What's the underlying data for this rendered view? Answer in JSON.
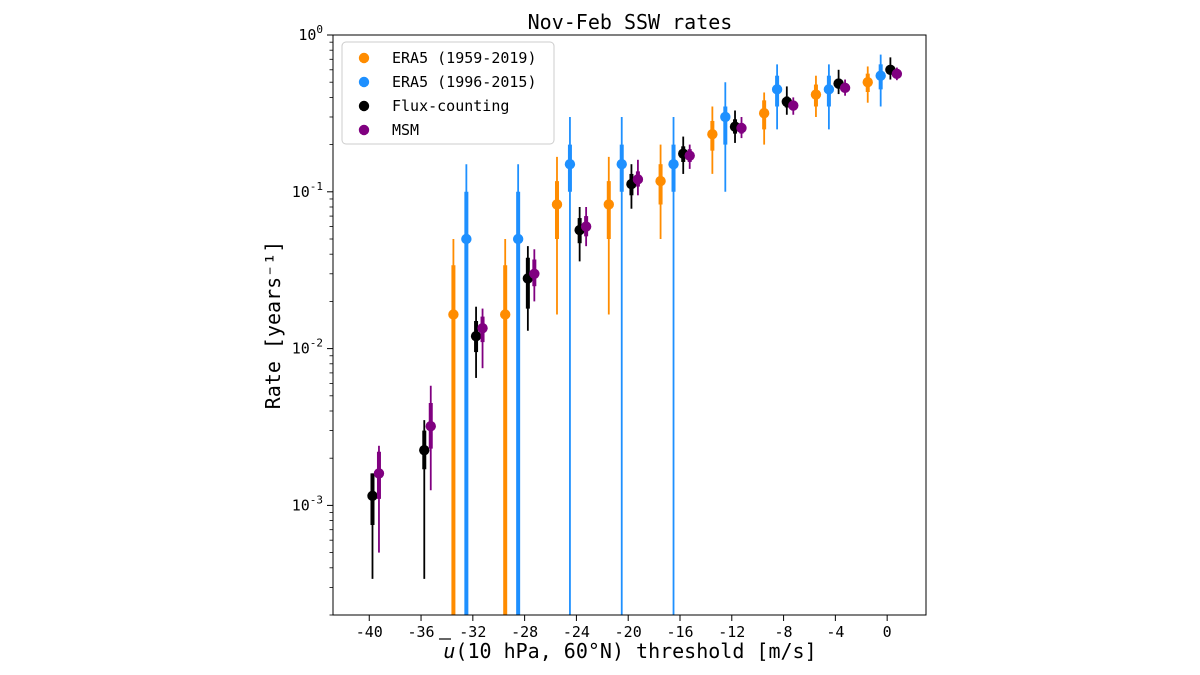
{
  "chart_data": {
    "type": "scatter",
    "title": "Nov-Feb SSW rates",
    "xlabel_prefix": "u",
    "xlabel_rest": "(10 hPa, 60°N) threshold [m/s]",
    "ylabel": "Rate [years⁻¹]",
    "yscale": "log",
    "xlim": [
      -42.8,
      3.0
    ],
    "ylim": [
      0.0002,
      1.0
    ],
    "x_ticks": [
      -40,
      -36,
      -32,
      -28,
      -24,
      -20,
      -16,
      -12,
      -8,
      -4,
      0
    ],
    "x_tick_labels": [
      "-40",
      "-36",
      "-32",
      "-28",
      "-24",
      "-20",
      "-16",
      "-12",
      "-8",
      "-4",
      "0"
    ],
    "y_ticks": [
      {
        "value": 0.001,
        "base": "10",
        "exp": "-3"
      },
      {
        "value": 0.01,
        "base": "10",
        "exp": "-2"
      },
      {
        "value": 0.1,
        "base": "10",
        "exp": "-1"
      },
      {
        "value": 1.0,
        "base": "10",
        "exp": "0"
      }
    ],
    "legend_position": "top-left",
    "thresholds": [
      -40,
      -36,
      -32,
      -28,
      -24,
      -20,
      -16,
      -12,
      -8,
      -4,
      0
    ],
    "series": [
      {
        "name": "ERA5 (1959-2019)",
        "color": "#ff8c00",
        "offset": -1.5,
        "points": [
          {
            "x": -32,
            "y": 0.0165,
            "lo_thick": 0.0002,
            "hi_thick": 0.034,
            "lo_thin": 0.0002,
            "hi_thin": 0.05
          },
          {
            "x": -28,
            "y": 0.0165,
            "lo_thick": 0.0002,
            "hi_thick": 0.034,
            "lo_thin": 0.0002,
            "hi_thin": 0.05
          },
          {
            "x": -24,
            "y": 0.083,
            "lo_thick": 0.05,
            "hi_thick": 0.117,
            "lo_thin": 0.0165,
            "hi_thin": 0.167
          },
          {
            "x": -20,
            "y": 0.083,
            "lo_thick": 0.05,
            "hi_thick": 0.117,
            "lo_thin": 0.0165,
            "hi_thin": 0.167
          },
          {
            "x": -16,
            "y": 0.117,
            "lo_thick": 0.083,
            "hi_thick": 0.15,
            "lo_thin": 0.05,
            "hi_thin": 0.2
          },
          {
            "x": -12,
            "y": 0.233,
            "lo_thick": 0.183,
            "hi_thick": 0.283,
            "lo_thin": 0.13,
            "hi_thin": 0.35
          },
          {
            "x": -8,
            "y": 0.317,
            "lo_thick": 0.25,
            "hi_thick": 0.383,
            "lo_thin": 0.2,
            "hi_thin": 0.43
          },
          {
            "x": -4,
            "y": 0.417,
            "lo_thick": 0.35,
            "hi_thick": 0.483,
            "lo_thin": 0.3,
            "hi_thin": 0.55
          },
          {
            "x": 0,
            "y": 0.5,
            "lo_thick": 0.433,
            "hi_thick": 0.567,
            "lo_thin": 0.37,
            "hi_thin": 0.63
          }
        ]
      },
      {
        "name": "ERA5 (1996-2015)",
        "color": "#1e90ff",
        "offset": -0.5,
        "points": [
          {
            "x": -32,
            "y": 0.05,
            "lo_thick": 0.0002,
            "hi_thick": 0.1,
            "lo_thin": 0.0002,
            "hi_thin": 0.15
          },
          {
            "x": -28,
            "y": 0.05,
            "lo_thick": 0.0002,
            "hi_thick": 0.1,
            "lo_thin": 0.0002,
            "hi_thin": 0.15
          },
          {
            "x": -24,
            "y": 0.15,
            "lo_thick": 0.1,
            "hi_thick": 0.2,
            "lo_thin": 0.0002,
            "hi_thin": 0.3
          },
          {
            "x": -20,
            "y": 0.15,
            "lo_thick": 0.1,
            "hi_thick": 0.2,
            "lo_thin": 0.0002,
            "hi_thin": 0.3
          },
          {
            "x": -16,
            "y": 0.15,
            "lo_thick": 0.1,
            "hi_thick": 0.2,
            "lo_thin": 0.0002,
            "hi_thin": 0.3
          },
          {
            "x": -12,
            "y": 0.3,
            "lo_thick": 0.2,
            "hi_thick": 0.35,
            "lo_thin": 0.1,
            "hi_thin": 0.5
          },
          {
            "x": -8,
            "y": 0.45,
            "lo_thick": 0.35,
            "hi_thick": 0.55,
            "lo_thin": 0.25,
            "hi_thin": 0.65
          },
          {
            "x": -4,
            "y": 0.45,
            "lo_thick": 0.35,
            "hi_thick": 0.55,
            "lo_thin": 0.25,
            "hi_thin": 0.65
          },
          {
            "x": 0,
            "y": 0.55,
            "lo_thick": 0.45,
            "hi_thick": 0.65,
            "lo_thin": 0.35,
            "hi_thin": 0.75
          }
        ]
      },
      {
        "name": "Flux-counting",
        "color": "#000000",
        "offset": 0.25,
        "points": [
          {
            "x": -40,
            "y": 0.00115,
            "lo_thick": 0.00075,
            "hi_thick": 0.0016,
            "lo_thin": 0.00034,
            "hi_thin": 0.0016
          },
          {
            "x": -36,
            "y": 0.00225,
            "lo_thick": 0.0017,
            "hi_thick": 0.003,
            "lo_thin": 0.00034,
            "hi_thin": 0.0035
          },
          {
            "x": -32,
            "y": 0.012,
            "lo_thick": 0.0095,
            "hi_thick": 0.015,
            "lo_thin": 0.0065,
            "hi_thin": 0.0185
          },
          {
            "x": -28,
            "y": 0.028,
            "lo_thick": 0.018,
            "hi_thick": 0.038,
            "lo_thin": 0.013,
            "hi_thin": 0.045
          },
          {
            "x": -24,
            "y": 0.057,
            "lo_thick": 0.047,
            "hi_thick": 0.068,
            "lo_thin": 0.036,
            "hi_thin": 0.08
          },
          {
            "x": -20,
            "y": 0.112,
            "lo_thick": 0.095,
            "hi_thick": 0.13,
            "lo_thin": 0.078,
            "hi_thin": 0.15
          },
          {
            "x": -16,
            "y": 0.175,
            "lo_thick": 0.155,
            "hi_thick": 0.195,
            "lo_thin": 0.13,
            "hi_thin": 0.225
          },
          {
            "x": -12,
            "y": 0.26,
            "lo_thick": 0.235,
            "hi_thick": 0.29,
            "lo_thin": 0.205,
            "hi_thin": 0.33
          },
          {
            "x": -8,
            "y": 0.375,
            "lo_thick": 0.345,
            "hi_thick": 0.405,
            "lo_thin": 0.31,
            "hi_thin": 0.47
          },
          {
            "x": -4,
            "y": 0.49,
            "lo_thick": 0.455,
            "hi_thick": 0.525,
            "lo_thin": 0.42,
            "hi_thin": 0.6
          },
          {
            "x": 0,
            "y": 0.6,
            "lo_thick": 0.56,
            "hi_thick": 0.64,
            "lo_thin": 0.52,
            "hi_thin": 0.72
          }
        ]
      },
      {
        "name": "MSM",
        "color": "#800080",
        "offset": 0.75,
        "points": [
          {
            "x": -40,
            "y": 0.0016,
            "lo_thick": 0.0011,
            "hi_thick": 0.0022,
            "lo_thin": 0.0005,
            "hi_thin": 0.0024
          },
          {
            "x": -36,
            "y": 0.0032,
            "lo_thick": 0.0023,
            "hi_thick": 0.0045,
            "lo_thin": 0.00125,
            "hi_thin": 0.0058
          },
          {
            "x": -32,
            "y": 0.0135,
            "lo_thick": 0.011,
            "hi_thick": 0.016,
            "lo_thin": 0.0075,
            "hi_thin": 0.018
          },
          {
            "x": -28,
            "y": 0.03,
            "lo_thick": 0.025,
            "hi_thick": 0.037,
            "lo_thin": 0.02,
            "hi_thin": 0.043
          },
          {
            "x": -24,
            "y": 0.06,
            "lo_thick": 0.052,
            "hi_thick": 0.07,
            "lo_thin": 0.045,
            "hi_thin": 0.08
          },
          {
            "x": -20,
            "y": 0.12,
            "lo_thick": 0.108,
            "hi_thick": 0.135,
            "lo_thin": 0.095,
            "hi_thin": 0.16
          },
          {
            "x": -16,
            "y": 0.17,
            "lo_thick": 0.155,
            "hi_thick": 0.187,
            "lo_thin": 0.14,
            "hi_thin": 0.2
          },
          {
            "x": -12,
            "y": 0.255,
            "lo_thick": 0.235,
            "hi_thick": 0.275,
            "lo_thin": 0.22,
            "hi_thin": 0.3
          },
          {
            "x": -8,
            "y": 0.355,
            "lo_thick": 0.335,
            "hi_thick": 0.38,
            "lo_thin": 0.31,
            "hi_thin": 0.4
          },
          {
            "x": -4,
            "y": 0.46,
            "lo_thick": 0.435,
            "hi_thick": 0.49,
            "lo_thin": 0.41,
            "hi_thin": 0.52
          },
          {
            "x": 0,
            "y": 0.565,
            "lo_thick": 0.54,
            "hi_thick": 0.595,
            "lo_thin": 0.515,
            "hi_thin": 0.62
          }
        ]
      }
    ]
  }
}
